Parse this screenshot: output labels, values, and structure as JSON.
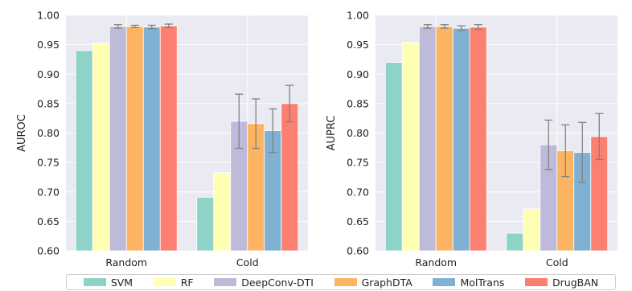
{
  "chart_data": [
    {
      "type": "bar",
      "ylabel": "AUROC",
      "categories": [
        "Random",
        "Cold"
      ],
      "ylim": [
        0.6,
        1.0
      ],
      "yticks": [
        "0.60",
        "0.65",
        "0.70",
        "0.75",
        "0.80",
        "0.85",
        "0.90",
        "0.95",
        "1.00"
      ],
      "grid": true,
      "series": [
        {
          "name": "SVM",
          "values": [
            0.94,
            0.691
          ],
          "errors": [
            null,
            null
          ]
        },
        {
          "name": "RF",
          "values": [
            0.953,
            0.733
          ],
          "errors": [
            null,
            null
          ]
        },
        {
          "name": "DeepConv-DTI",
          "values": [
            0.981,
            0.82
          ],
          "errors": [
            0.003,
            0.046
          ]
        },
        {
          "name": "GraphDTA",
          "values": [
            0.981,
            0.816
          ],
          "errors": [
            0.002,
            0.042
          ]
        },
        {
          "name": "MolTrans",
          "values": [
            0.98,
            0.804
          ],
          "errors": [
            0.003,
            0.037
          ]
        },
        {
          "name": "DrugBAN",
          "values": [
            0.982,
            0.85
          ],
          "errors": [
            0.003,
            0.031
          ]
        }
      ]
    },
    {
      "type": "bar",
      "ylabel": "AUPRC",
      "categories": [
        "Random",
        "Cold"
      ],
      "ylim": [
        0.6,
        1.0
      ],
      "yticks": [
        "0.60",
        "0.65",
        "0.70",
        "0.75",
        "0.80",
        "0.85",
        "0.90",
        "0.95",
        "1.00"
      ],
      "grid": true,
      "series": [
        {
          "name": "SVM",
          "values": [
            0.92,
            0.63
          ],
          "errors": [
            null,
            null
          ]
        },
        {
          "name": "RF",
          "values": [
            0.954,
            0.671
          ],
          "errors": [
            null,
            null
          ]
        },
        {
          "name": "DeepConv-DTI",
          "values": [
            0.981,
            0.78
          ],
          "errors": [
            0.003,
            0.042
          ]
        },
        {
          "name": "GraphDTA",
          "values": [
            0.981,
            0.77
          ],
          "errors": [
            0.003,
            0.044
          ]
        },
        {
          "name": "MolTrans",
          "values": [
            0.978,
            0.767
          ],
          "errors": [
            0.004,
            0.051
          ]
        },
        {
          "name": "DrugBAN",
          "values": [
            0.98,
            0.794
          ],
          "errors": [
            0.004,
            0.039
          ]
        }
      ]
    }
  ],
  "legend": {
    "placement": "bottom",
    "items": [
      {
        "label": "SVM",
        "color": "#8dd3c7"
      },
      {
        "label": "RF",
        "color": "#ffffb3"
      },
      {
        "label": "DeepConv-DTI",
        "color": "#bebada"
      },
      {
        "label": "GraphDTA",
        "color": "#fdb462"
      },
      {
        "label": "MolTrans",
        "color": "#80b1d3"
      },
      {
        "label": "DrugBAN",
        "color": "#fb8072"
      }
    ]
  },
  "style": {
    "plot_background": "#eaeaf2",
    "grid_color": "#ffffff",
    "error_color": "#808080"
  }
}
